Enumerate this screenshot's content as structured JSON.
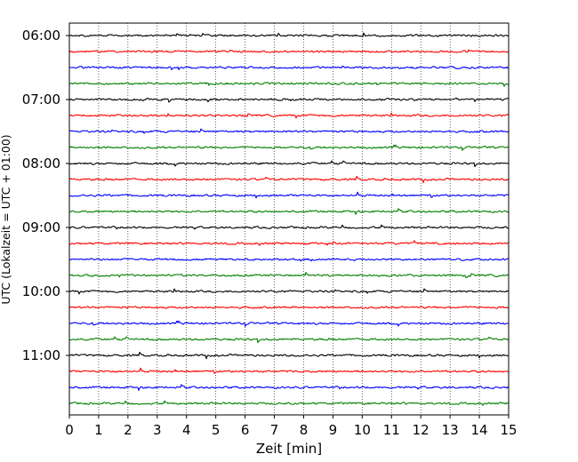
{
  "chart_data": {
    "type": "line",
    "title": "",
    "xlabel": "Zeit  [min]",
    "ylabel": "UTC (Lokalzeit = UTC + 01:00)",
    "xlim": [
      0,
      15
    ],
    "x_ticks": [
      0,
      1,
      2,
      3,
      4,
      5,
      6,
      7,
      8,
      9,
      10,
      11,
      12,
      13,
      14,
      15
    ],
    "x_tick_labels": [
      "0",
      "1",
      "2",
      "3",
      "4",
      "5",
      "6",
      "7",
      "8",
      "9",
      "10",
      "11",
      "12",
      "13",
      "14",
      "15"
    ],
    "y_tick_labels": [
      "06:00",
      "07:00",
      "08:00",
      "09:00",
      "10:00",
      "11:00"
    ],
    "grid": "vertical dotted lines at x ticks",
    "legend": "none",
    "trace_interval_minutes": 15,
    "trace_start_times": [
      "06:00",
      "06:15",
      "06:30",
      "06:45",
      "07:00",
      "07:15",
      "07:30",
      "07:45",
      "08:00",
      "08:15",
      "08:30",
      "08:45",
      "09:00",
      "09:15",
      "09:30",
      "09:45",
      "10:00",
      "10:15",
      "10:30",
      "10:45",
      "11:00",
      "11:15",
      "11:30",
      "11:45"
    ],
    "trace_color_cycle": [
      "#000000",
      "#ff0000",
      "#0000ff",
      "#008000"
    ]
  }
}
